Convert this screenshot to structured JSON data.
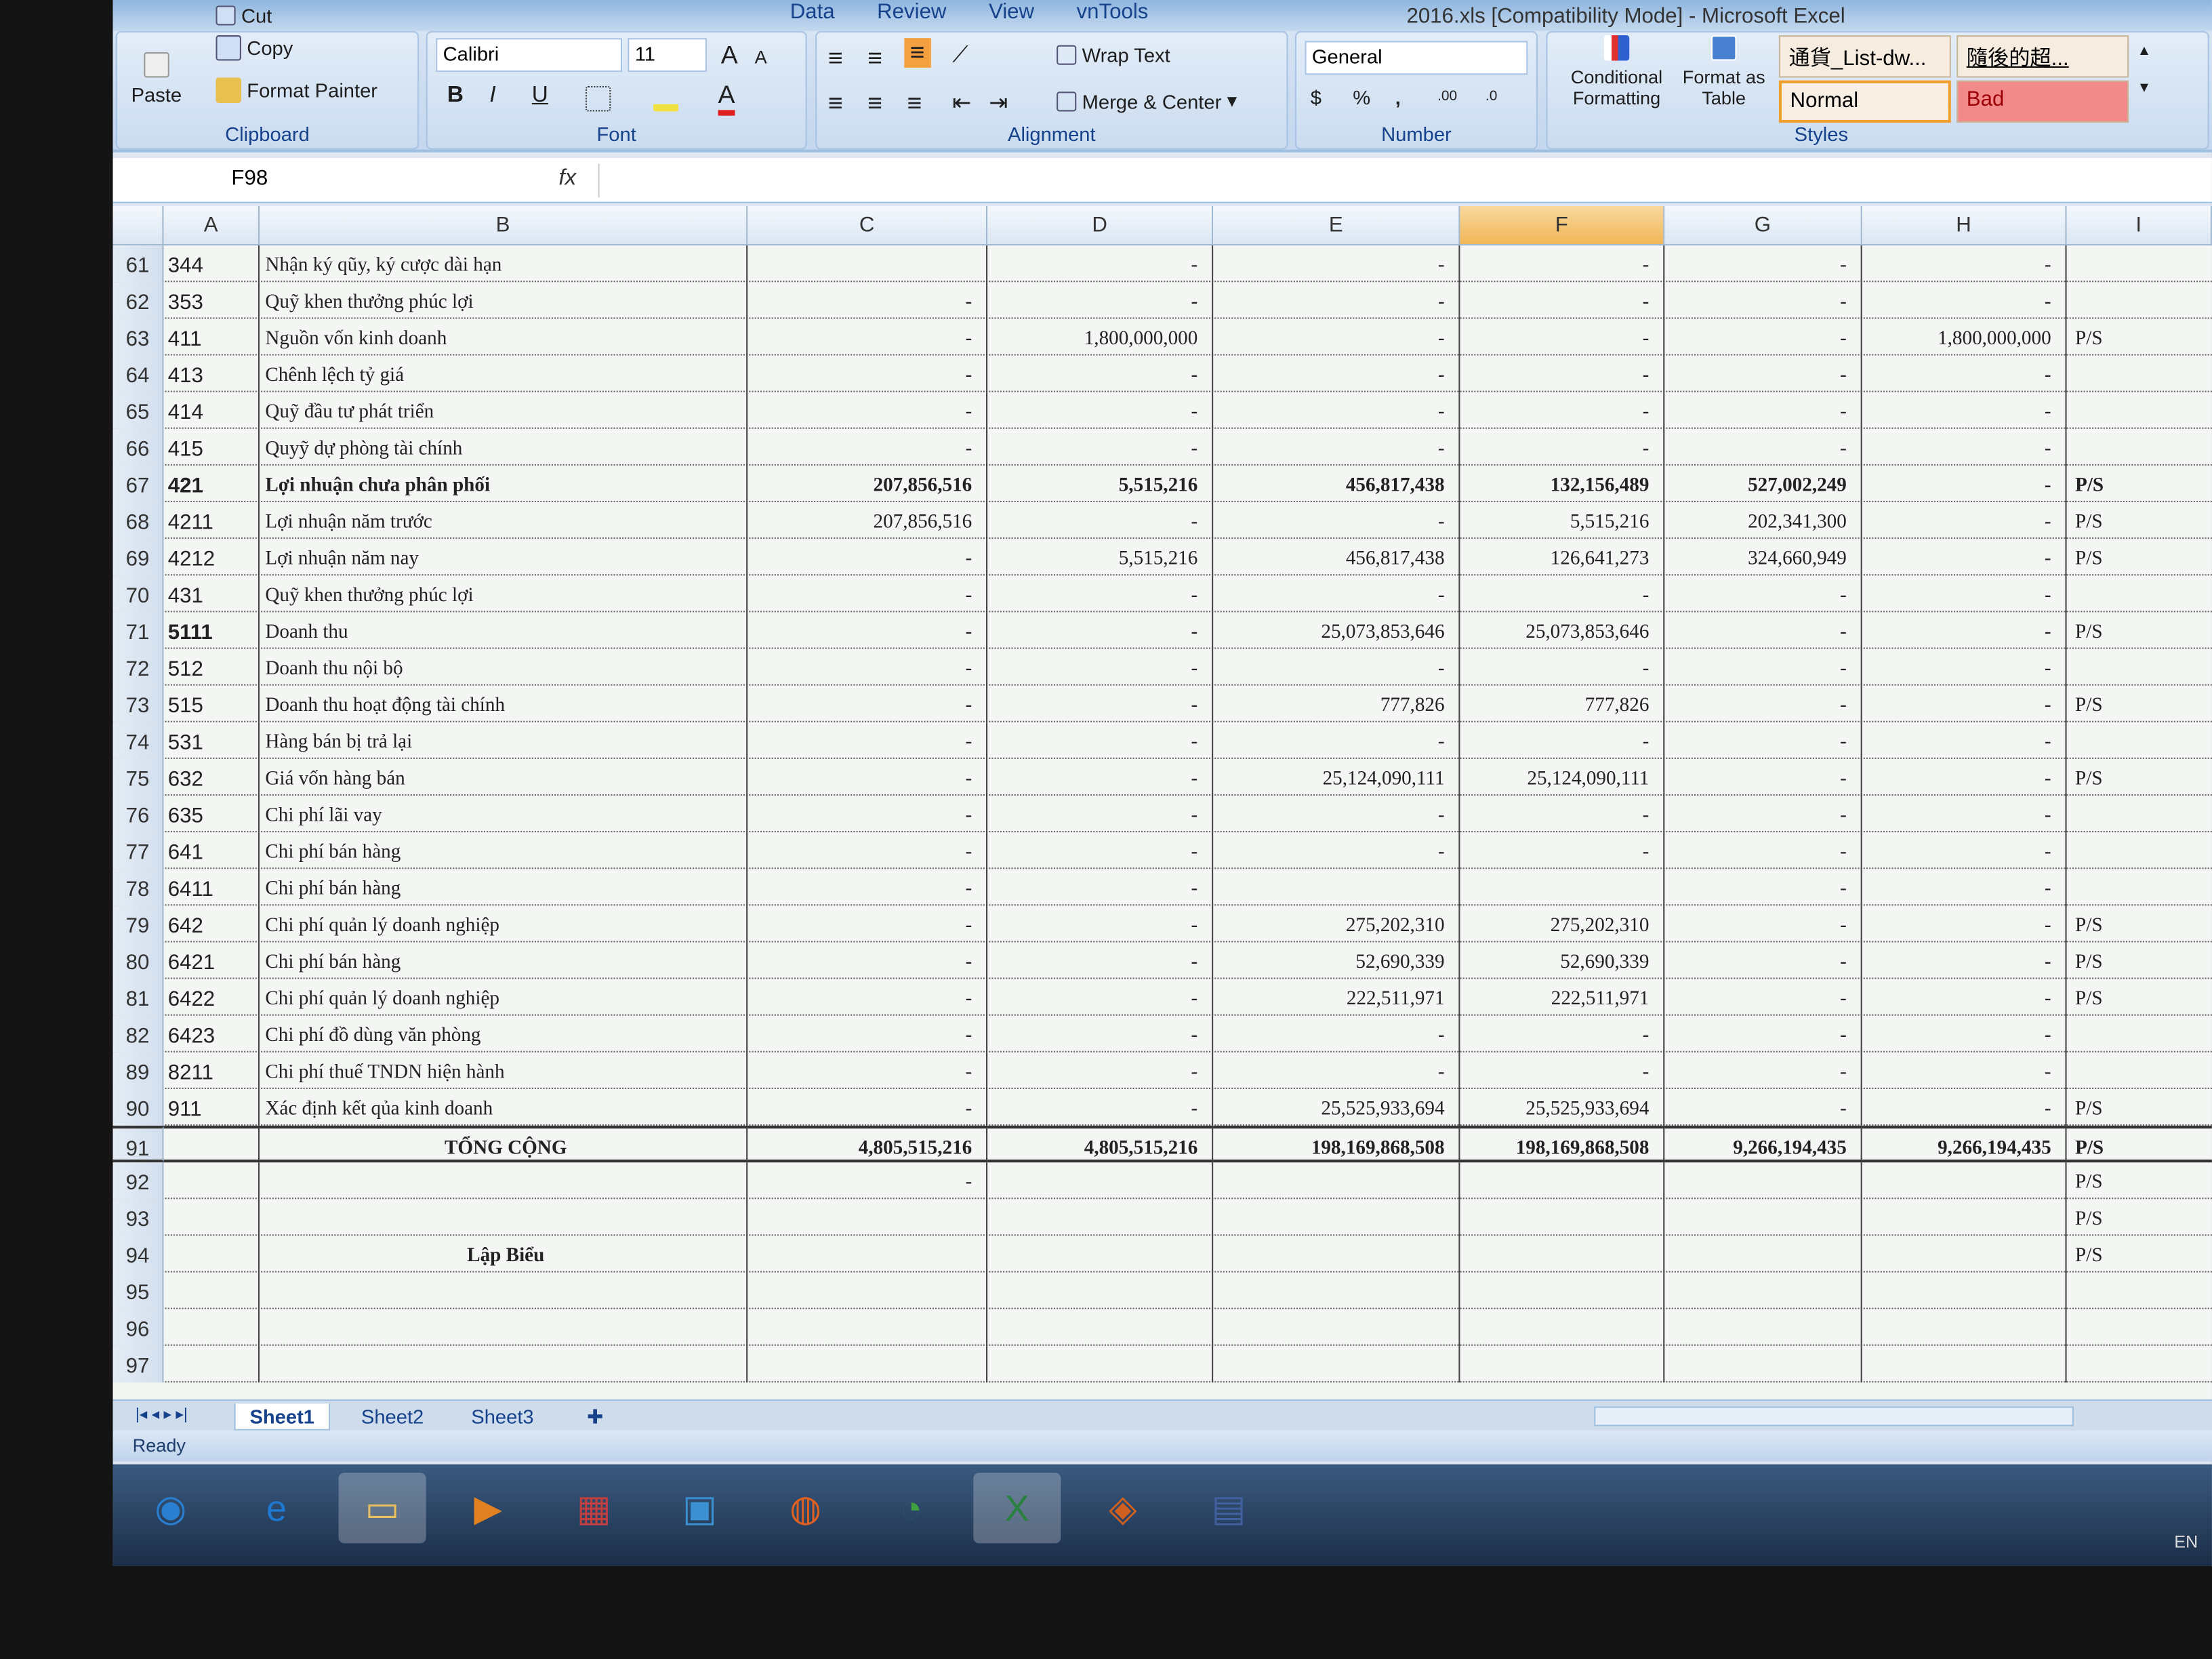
{
  "window": {
    "title": "2016.xls [Compatibility Mode] - Microsoft Excel"
  },
  "ribbon_tabs": [
    "Data",
    "Review",
    "View",
    "vnTools"
  ],
  "clipboard": {
    "paste": "Paste",
    "cut": "Cut",
    "copy": "Copy",
    "format_painter": "Format Painter",
    "label": "Clipboard"
  },
  "font": {
    "name": "Calibri",
    "size": "11",
    "label": "Font",
    "bold": "B",
    "italic": "I",
    "underline": "U",
    "grow": "A",
    "shrink": "A",
    "font_color": "A"
  },
  "alignment": {
    "wrap_text": "Wrap Text",
    "merge_center": "Merge & Center",
    "label": "Alignment"
  },
  "number": {
    "format": "General",
    "currency": "$",
    "percent": "%",
    "comma": ",",
    "inc_decimal": ".00",
    "dec_decimal": ".0",
    "label": "Number"
  },
  "styles": {
    "conditional": "Conditional Formatting",
    "format_table": "Format as Table",
    "style1": "通貨_List-dw...",
    "style2": "隨後的超...",
    "normal": "Normal",
    "bad": "Bad",
    "label": "Styles",
    "bad_color": "#f28a8a",
    "normal_border": "#f0a030"
  },
  "formula_bar": {
    "name_box": "F98",
    "fx": "fx",
    "value": ""
  },
  "columns": [
    "A",
    "B",
    "C",
    "D",
    "E",
    "F",
    "G",
    "H",
    "I"
  ],
  "selected_column": "F",
  "rows": [
    {
      "n": "61",
      "a": "344",
      "b": "Nhận ký qũy, ký cược dài hạn",
      "c": "",
      "d": "-",
      "e": "-",
      "f": "-",
      "g": "-",
      "h": "-",
      "i": ""
    },
    {
      "n": "62",
      "a": "353",
      "b": "Quỹ khen thưởng phúc lợi",
      "c": "-",
      "d": "-",
      "e": "-",
      "f": "-",
      "g": "-",
      "h": "-",
      "i": ""
    },
    {
      "n": "63",
      "a": "411",
      "b": "Nguồn vốn kinh doanh",
      "c": "-",
      "d": "1,800,000,000",
      "e": "-",
      "f": "-",
      "g": "-",
      "h": "1,800,000,000",
      "i": "P/S"
    },
    {
      "n": "64",
      "a": "413",
      "b": "Chênh lệch tỷ giá",
      "c": "-",
      "d": "-",
      "e": "-",
      "f": "-",
      "g": "-",
      "h": "-",
      "i": ""
    },
    {
      "n": "65",
      "a": "414",
      "b": "Quỹ đầu tư phát triển",
      "c": "-",
      "d": "-",
      "e": "-",
      "f": "-",
      "g": "-",
      "h": "-",
      "i": ""
    },
    {
      "n": "66",
      "a": "415",
      "b": "Quyỹ dự phòng tài chính",
      "c": "-",
      "d": "-",
      "e": "-",
      "f": "-",
      "g": "-",
      "h": "-",
      "i": ""
    },
    {
      "n": "67",
      "a": "421",
      "b": "Lợi nhuận chưa phân phối",
      "bold": true,
      "c": "207,856,516",
      "d": "5,515,216",
      "e": "456,817,438",
      "f": "132,156,489",
      "g": "527,002,249",
      "h": "-",
      "i": "P/S"
    },
    {
      "n": "68",
      "a": "4211",
      "b": "Lợi nhuận năm trước",
      "c": "207,856,516",
      "d": "-",
      "e": "-",
      "f": "5,515,216",
      "g": "202,341,300",
      "h": "-",
      "i": "P/S"
    },
    {
      "n": "69",
      "a": "4212",
      "b": "Lợi nhuận năm nay",
      "c": "-",
      "d": "5,515,216",
      "e": "456,817,438",
      "f": "126,641,273",
      "g": "324,660,949",
      "h": "-",
      "i": "P/S"
    },
    {
      "n": "70",
      "a": "431",
      "b": "Quỹ khen thưởng phúc lợi",
      "c": "-",
      "d": "-",
      "e": "-",
      "f": "-",
      "g": "-",
      "h": "-",
      "i": ""
    },
    {
      "n": "71",
      "a": "5111",
      "abold": true,
      "b": "Doanh thu",
      "c": "-",
      "d": "-",
      "e": "25,073,853,646",
      "f": "25,073,853,646",
      "g": "-",
      "h": "-",
      "i": "P/S"
    },
    {
      "n": "72",
      "a": "512",
      "b": "Doanh thu nội bộ",
      "c": "-",
      "d": "-",
      "e": "-",
      "f": "-",
      "g": "-",
      "h": "-",
      "i": ""
    },
    {
      "n": "73",
      "a": "515",
      "b": "Doanh thu hoạt động tài chính",
      "c": "-",
      "d": "-",
      "e": "777,826",
      "f": "777,826",
      "g": "-",
      "h": "-",
      "i": "P/S"
    },
    {
      "n": "74",
      "a": "531",
      "b": "Hàng bán bị trả lại",
      "c": "-",
      "d": "-",
      "e": "-",
      "f": "-",
      "g": "-",
      "h": "-",
      "i": ""
    },
    {
      "n": "75",
      "a": "632",
      "b": "Giá vốn hàng bán",
      "c": "-",
      "d": "-",
      "e": "25,124,090,111",
      "f": "25,124,090,111",
      "g": "-",
      "h": "-",
      "i": "P/S"
    },
    {
      "n": "76",
      "a": "635",
      "b": "Chi phí lãi vay",
      "c": "-",
      "d": "-",
      "e": "-",
      "f": "-",
      "g": "-",
      "h": "-",
      "i": ""
    },
    {
      "n": "77",
      "a": "641",
      "b": "Chi phí bán hàng",
      "c": "-",
      "d": "-",
      "e": "-",
      "f": "-",
      "g": "-",
      "h": "-",
      "i": ""
    },
    {
      "n": "78",
      "a": "6411",
      "b": "Chi phí bán hàng",
      "c": "-",
      "d": "-",
      "e": "",
      "f": "",
      "g": "-",
      "h": "-",
      "i": ""
    },
    {
      "n": "79",
      "a": "642",
      "b": "Chi phí quản lý doanh nghiệp",
      "c": "-",
      "d": "-",
      "e": "275,202,310",
      "f": "275,202,310",
      "g": "-",
      "h": "-",
      "i": "P/S"
    },
    {
      "n": "80",
      "a": "6421",
      "b": "Chi phí bán hàng",
      "c": "-",
      "d": "-",
      "e": "52,690,339",
      "f": "52,690,339",
      "g": "-",
      "h": "-",
      "i": "P/S"
    },
    {
      "n": "81",
      "a": "6422",
      "b": "Chi phí quản lý doanh nghiệp",
      "c": "-",
      "d": "-",
      "e": "222,511,971",
      "f": "222,511,971",
      "g": "-",
      "h": "-",
      "i": "P/S"
    },
    {
      "n": "82",
      "a": "6423",
      "b": "Chi phí  đồ  dùng  văn phòng",
      "c": "-",
      "d": "-",
      "e": "-",
      "f": "-",
      "g": "-",
      "h": "-",
      "i": ""
    },
    {
      "n": "89",
      "a": "8211",
      "b": "Chi phí thuế TNDN hiện hành",
      "c": "-",
      "d": "-",
      "e": "-",
      "f": "-",
      "g": "-",
      "h": "-",
      "i": ""
    },
    {
      "n": "90",
      "a": "911",
      "b": "Xác định kết qủa kinh doanh",
      "c": "-",
      "d": "-",
      "e": "25,525,933,694",
      "f": "25,525,933,694",
      "g": "-",
      "h": "-",
      "i": "P/S"
    },
    {
      "n": "91",
      "a": "",
      "b": "TỔNG CỘNG",
      "total": true,
      "c": "4,805,515,216",
      "d": "4,805,515,216",
      "e": "198,169,868,508",
      "f": "198,169,868,508",
      "g": "9,266,194,435",
      "h": "9,266,194,435",
      "i": "P/S"
    },
    {
      "n": "92",
      "a": "",
      "b": "",
      "c": "-",
      "d": "",
      "e": "",
      "f": "",
      "g": "",
      "h": "",
      "i": "P/S"
    },
    {
      "n": "93",
      "a": "",
      "b": "",
      "c": "",
      "d": "",
      "e": "",
      "f": "",
      "g": "",
      "h": "",
      "i": "P/S"
    },
    {
      "n": "94",
      "a": "",
      "b": "Lập Biểu",
      "center": true,
      "c": "",
      "d": "",
      "e": "",
      "f": "",
      "g": "",
      "h": "",
      "i": "P/S"
    },
    {
      "n": "95",
      "a": "",
      "b": "",
      "c": "",
      "d": "",
      "e": "",
      "f": "",
      "g": "",
      "h": "",
      "i": ""
    },
    {
      "n": "96",
      "a": "",
      "b": "",
      "c": "",
      "d": "",
      "e": "",
      "f": "",
      "g": "",
      "h": "",
      "i": ""
    },
    {
      "n": "97",
      "a": "",
      "b": "",
      "c": "",
      "d": "",
      "e": "",
      "f": "",
      "g": "",
      "h": "",
      "i": ""
    }
  ],
  "sheets": [
    "Sheet1",
    "Sheet2",
    "Sheet3"
  ],
  "active_sheet": "Sheet1",
  "status": "Ready",
  "taskbar": {
    "icons": [
      "windows-start-icon",
      "internet-explorer-icon",
      "file-explorer-icon",
      "media-player-icon",
      "app-icon",
      "network-icon",
      "firefox-icon",
      "app-green-icon",
      "excel-icon",
      "app-orange-icon",
      "calculator-icon"
    ],
    "language": "EN"
  }
}
